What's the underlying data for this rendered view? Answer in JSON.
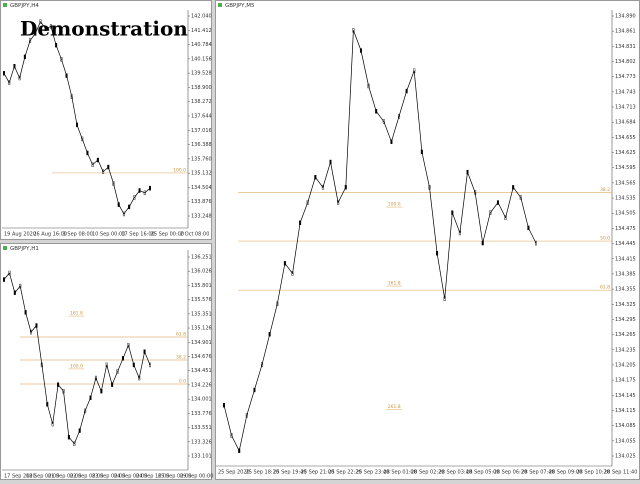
{
  "banner": "Demonstration",
  "windows": [
    {
      "title": "GBPJPY,H4",
      "ylim": [
        133.0,
        142.3
      ],
      "yticks": [
        "142.040",
        "141.412",
        "140.784",
        "140.156",
        "139.528",
        "138.900",
        "138.272",
        "137.644",
        "137.016",
        "136.388",
        "135.760",
        "135.132",
        "134.504",
        "133.876",
        "133.248"
      ],
      "xticks": [
        "19 Aug 2020",
        "26 Aug 16:00",
        "3 Sep 08:00",
        "10 Sep 00:00",
        "17 Sep 16:00",
        "25 Sep 00:00",
        "2 Oct 08:00"
      ],
      "closes": [
        139.6,
        139.2,
        139.9,
        139.4,
        140.3,
        141.0,
        141.3,
        141.8,
        141.5,
        141.6,
        140.8,
        140.2,
        139.5,
        138.6,
        137.4,
        136.8,
        136.2,
        135.7,
        135.9,
        135.4,
        135.6,
        134.9,
        134.0,
        133.6,
        133.9,
        134.3,
        134.6,
        134.5,
        134.7
      ],
      "lines": [
        {
          "price": 135.35,
          "label": "100.0"
        }
      ],
      "notes": []
    },
    {
      "title": "GBPJPY,H1",
      "ylim": [
        133.0,
        136.35
      ],
      "yticks": [
        "136.251",
        "136.026",
        "135.801",
        "135.576",
        "135.351",
        "135.126",
        "134.901",
        "134.676",
        "134.451",
        "134.226",
        "134.001",
        "133.776",
        "133.551",
        "133.326",
        "133.101"
      ],
      "xticks": [
        "17 Sep 2020",
        "18 Sep 00:00",
        "21 Sep 00:00",
        "22 Sep 08:00",
        "23 Sep 00:00",
        "24 Sep 00:00",
        "24 Sep 16:00",
        "25 Sep 00:00",
        "29 Sep 00:00"
      ],
      "closes": [
        135.9,
        136.0,
        135.7,
        135.8,
        135.4,
        135.1,
        135.2,
        134.6,
        134.0,
        133.7,
        134.3,
        134.2,
        133.5,
        133.4,
        133.6,
        133.9,
        134.1,
        134.4,
        134.2,
        134.6,
        134.3,
        134.5,
        134.7,
        134.9,
        134.6,
        134.4,
        134.8,
        134.6
      ],
      "lines": [
        {
          "price": 135.025,
          "label": "61.8"
        },
        {
          "price": 134.675,
          "label": "38.2"
        },
        {
          "price": 134.31,
          "label": "0.0"
        }
      ],
      "notes": [
        {
          "price": 135.375,
          "label": "161.8"
        },
        {
          "price": 134.57,
          "label": "100.0"
        }
      ]
    },
    {
      "title": "GBPJPY,M5",
      "ylim": [
        134.0,
        134.9
      ],
      "yticks": [
        "134.890",
        "134.861",
        "134.831",
        "134.802",
        "134.773",
        "134.743",
        "134.713",
        "134.684",
        "134.655",
        "134.625",
        "134.595",
        "134.565",
        "134.535",
        "134.505",
        "134.475",
        "134.445",
        "134.415",
        "134.385",
        "134.355",
        "134.325",
        "134.295",
        "134.265",
        "134.235",
        "134.205",
        "134.175",
        "134.145",
        "134.115",
        "134.085",
        "134.055",
        "134.025"
      ],
      "xticks": [
        "25 Sep 2020",
        "25 Sep 18:20",
        "25 Sep 19:40",
        "25 Sep 21:00",
        "25 Sep 22:20",
        "25 Sep 23:40",
        "28 Sep 01:00",
        "28 Sep 02:20",
        "28 Sep 03:40",
        "28 Sep 05:00",
        "28 Sep 06:20",
        "28 Sep 07:40",
        "28 Sep 09:00",
        "28 Sep 10:20",
        "28 Sep 11:40"
      ],
      "closes": [
        134.12,
        134.06,
        134.03,
        134.1,
        134.15,
        134.2,
        134.26,
        134.32,
        134.4,
        134.38,
        134.48,
        134.52,
        134.57,
        134.55,
        134.6,
        134.52,
        134.55,
        134.86,
        134.82,
        134.75,
        134.7,
        134.68,
        134.64,
        134.69,
        134.74,
        134.78,
        134.62,
        134.55,
        134.42,
        134.33,
        134.5,
        134.46,
        134.58,
        134.54,
        134.44,
        134.5,
        134.52,
        134.49,
        134.55,
        134.53,
        134.47,
        134.44
      ],
      "lines": [
        {
          "price": 134.54,
          "label": "38.2"
        },
        {
          "price": 134.444,
          "label": "50.0"
        },
        {
          "price": 134.347,
          "label": "61.8"
        }
      ],
      "notes": [
        {
          "price": 134.515,
          "label": "100.0"
        },
        {
          "price": 134.359,
          "label": "161.8"
        },
        {
          "price": 134.115,
          "label": "261.8"
        }
      ]
    }
  ]
}
